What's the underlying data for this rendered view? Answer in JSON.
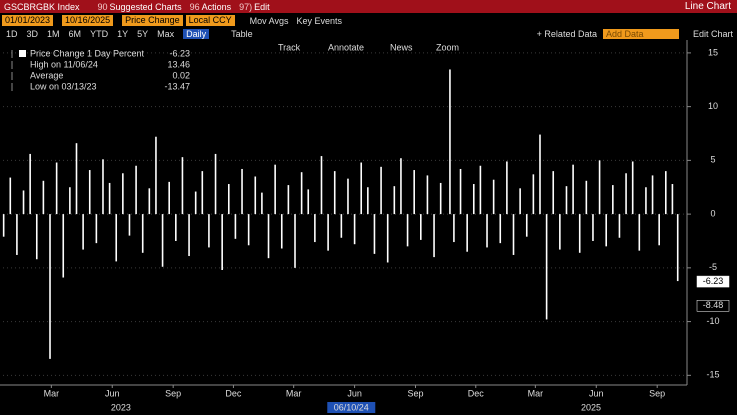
{
  "header": {
    "ticker": "GSCBRGBK Index",
    "menus": [
      {
        "key": "90",
        "label": "Suggested Charts"
      },
      {
        "key": "96",
        "label": "Actions"
      },
      {
        "key": "97)",
        "label": "Edit"
      }
    ],
    "view": "Line Chart"
  },
  "toolbar": {
    "start_date": "01/01/2023",
    "end_date": "10/16/2025",
    "field": "Price Change",
    "currency": "Local CCY",
    "options": [
      "Mov Avgs",
      "Key Events"
    ],
    "periods": [
      "1D",
      "3D",
      "1M",
      "6M",
      "YTD",
      "1Y",
      "5Y",
      "Max"
    ],
    "frequency": "Daily",
    "table": "Table",
    "related": "+ Related Data",
    "add_data": "Add Data",
    "edit_chart": "Edit Chart"
  },
  "chart_tools": [
    "Track",
    "Annotate",
    "News",
    "Zoom"
  ],
  "chart_data": {
    "type": "bar",
    "color": "#ffffff",
    "grid": true,
    "x": [
      1,
      11,
      21,
      31,
      41,
      51,
      61,
      71,
      81,
      91,
      101,
      111,
      121,
      131,
      141,
      151,
      161,
      171,
      181,
      191,
      201,
      211,
      221,
      231,
      241,
      251,
      261,
      271,
      281,
      291,
      301,
      311,
      321,
      331,
      341,
      351,
      361,
      371,
      381,
      391,
      401,
      411,
      421,
      431,
      441,
      451,
      461,
      471,
      481,
      491,
      501,
      511,
      521,
      531,
      541,
      551,
      561,
      571,
      581,
      591,
      601,
      611,
      621,
      631,
      641,
      651,
      661,
      675,
      681,
      691,
      701,
      711,
      721,
      731,
      741,
      751,
      761,
      771,
      781,
      791,
      801,
      811,
      821,
      831,
      841,
      851,
      861,
      871,
      881,
      891,
      901,
      911,
      921,
      931,
      941,
      951,
      961,
      971,
      981,
      991,
      1001,
      1011,
      1019
    ],
    "values": [
      -2.1,
      3.4,
      -3.8,
      2.2,
      5.6,
      -4.2,
      3.1,
      -13.47,
      4.8,
      -5.9,
      2.5,
      6.6,
      -3.3,
      4.1,
      -2.7,
      5.1,
      2.9,
      -4.4,
      3.8,
      -2.0,
      4.5,
      -3.6,
      2.4,
      7.2,
      -4.9,
      3.0,
      -2.5,
      5.3,
      -3.9,
      2.1,
      4.0,
      -3.1,
      5.6,
      -5.2,
      2.8,
      -2.3,
      4.2,
      -2.9,
      3.5,
      2.0,
      -4.1,
      4.6,
      -3.2,
      2.7,
      -5.0,
      3.9,
      2.3,
      -2.6,
      5.4,
      -3.4,
      4.0,
      -2.2,
      3.3,
      -2.8,
      4.8,
      2.5,
      -3.7,
      4.4,
      -4.5,
      2.6,
      5.2,
      -3.0,
      4.1,
      -2.4,
      3.6,
      -4.0,
      2.9,
      13.46,
      -2.6,
      4.2,
      -3.5,
      2.8,
      4.5,
      -3.1,
      3.2,
      -2.7,
      4.9,
      -3.8,
      2.4,
      -2.1,
      3.7,
      7.4,
      -9.8,
      4.0,
      -3.3,
      2.6,
      4.6,
      -3.6,
      3.1,
      -2.5,
      5.0,
      -3.0,
      2.7,
      -2.2,
      3.8,
      4.9,
      -3.4,
      2.5,
      3.6,
      -2.9,
      4.0,
      2.8,
      -6.23
    ],
    "xlim": [
      0,
      1030
    ],
    "xticks": [
      {
        "value": 73,
        "label": "Mar"
      },
      {
        "value": 165,
        "label": "Jun"
      },
      {
        "value": 257,
        "label": "Sep"
      },
      {
        "value": 348,
        "label": "Dec"
      },
      {
        "value": 439,
        "label": "Mar"
      },
      {
        "value": 531,
        "label": "Jun"
      },
      {
        "value": 623,
        "label": "Sep"
      },
      {
        "value": 714,
        "label": "Dec"
      },
      {
        "value": 804,
        "label": "Mar"
      },
      {
        "value": 896,
        "label": "Jun"
      },
      {
        "value": 988,
        "label": "Sep"
      }
    ],
    "year_labels": [
      {
        "value": 178,
        "label": "2023"
      },
      {
        "value": 526,
        "label": "06/10/24"
      },
      {
        "value": 888,
        "label": "2025"
      }
    ],
    "ylim": [
      -15.9,
      16.2
    ],
    "yticks": [
      -15,
      -10,
      -5,
      0,
      5,
      10,
      15
    ],
    "markers": [
      -6.23,
      -8.48
    ],
    "legend": [
      {
        "label": "Price Change 1 Day Percent",
        "value": -6.23
      },
      {
        "label": "High on 11/06/24",
        "value": 13.46
      },
      {
        "label": "Average",
        "value": 0.02
      },
      {
        "label": "Low on 03/13/23",
        "value": -13.47
      }
    ]
  }
}
